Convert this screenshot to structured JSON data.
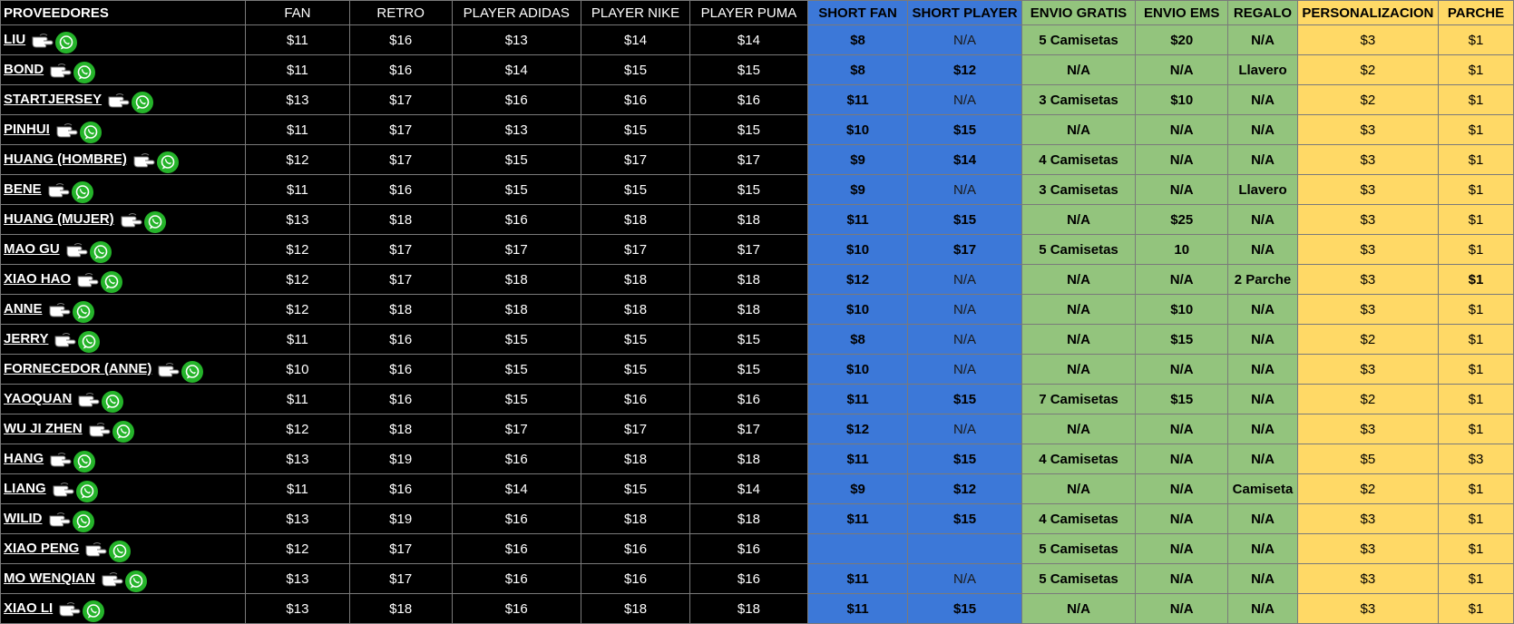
{
  "colors": {
    "black": "#000000",
    "blue": "#3c78d8",
    "green": "#93c47d",
    "yellow": "#ffd966",
    "whatsapp": "#25b42a"
  },
  "headers": {
    "proveedores": "PROVEEDORES",
    "fan": "FAN",
    "retro": "RETRO",
    "player_adidas": "PLAYER ADIDAS",
    "player_nike": "PLAYER NIKE",
    "player_puma": "PLAYER PUMA",
    "short_fan": "SHORT FAN",
    "short_player": "SHORT PLAYER",
    "envio_gratis": "ENVIO GRATIS",
    "envio_ems": "ENVIO EMS",
    "regalo": "REGALO",
    "personalizacion": "PERSONALIZACION",
    "parche": "PARCHE"
  },
  "row_icons": {
    "pointer": "pointing-hand-icon",
    "contact": "whatsapp-icon"
  },
  "rows": [
    {
      "name": "LIU",
      "fan": "$11",
      "retro": "$16",
      "adidas": "$13",
      "nike": "$14",
      "puma": "$14",
      "short_fan": "$8",
      "short_player": "N/A",
      "envio_gratis": "5 Camisetas",
      "envio_ems": "$20",
      "regalo": "N/A",
      "personalizacion": "$3",
      "parche": "$1"
    },
    {
      "name": "BOND",
      "fan": "$11",
      "retro": "$16",
      "adidas": "$14",
      "nike": "$15",
      "puma": "$15",
      "short_fan": "$8",
      "short_player": "$12",
      "envio_gratis": "N/A",
      "envio_ems": "N/A",
      "regalo": "Llavero",
      "personalizacion": "$2",
      "parche": "$1"
    },
    {
      "name": "STARTJERSEY",
      "fan": "$13",
      "retro": "$17",
      "adidas": "$16",
      "nike": "$16",
      "puma": "$16",
      "short_fan": "$11",
      "short_player": "N/A",
      "envio_gratis": "3 Camisetas",
      "envio_ems": "$10",
      "regalo": "N/A",
      "personalizacion": "$2",
      "parche": "$1"
    },
    {
      "name": "PINHUI",
      "fan": "$11",
      "retro": "$17",
      "adidas": "$13",
      "nike": "$15",
      "puma": "$15",
      "short_fan": "$10",
      "short_player": "$15",
      "envio_gratis": "N/A",
      "envio_ems": "N/A",
      "regalo": "N/A",
      "personalizacion": "$3",
      "parche": "$1"
    },
    {
      "name": "HUANG",
      "name_suffix": "(HOMBRE)",
      "fan": "$12",
      "retro": "$17",
      "adidas": "$15",
      "nike": "$17",
      "puma": "$17",
      "short_fan": "$9",
      "short_player": "$14",
      "envio_gratis": "4 Camisetas",
      "envio_ems": "N/A",
      "regalo": "N/A",
      "personalizacion": "$3",
      "parche": "$1"
    },
    {
      "name": "BENE",
      "fan": "$11",
      "retro": "$16",
      "adidas": "$15",
      "nike": "$15",
      "puma": "$15",
      "short_fan": "$9",
      "short_player": "N/A",
      "envio_gratis": "3 Camisetas",
      "envio_ems": "N/A",
      "regalo": "Llavero",
      "personalizacion": "$3",
      "parche": "$1"
    },
    {
      "name": "HUANG (MUJER)",
      "fan": "$13",
      "retro": "$18",
      "adidas": "$16",
      "nike": "$18",
      "puma": "$18",
      "short_fan": "$11",
      "short_player": "$15",
      "envio_gratis": "N/A",
      "envio_ems": "$25",
      "regalo": "N/A",
      "personalizacion": "$3",
      "parche": "$1"
    },
    {
      "name": "MAO GU",
      "fan": "$12",
      "retro": "$17",
      "adidas": "$17",
      "nike": "$17",
      "puma": "$17",
      "short_fan": "$10",
      "short_player": "$17",
      "envio_gratis": "5 Camisetas",
      "envio_ems": "10",
      "regalo": "N/A",
      "personalizacion": "$3",
      "parche": "$1"
    },
    {
      "name": "XIAO HAO",
      "fan": "$12",
      "retro": "$17",
      "adidas": "$18",
      "nike": "$18",
      "puma": "$18",
      "short_fan": "$12",
      "short_player": "N/A",
      "envio_gratis": "N/A",
      "envio_ems": "N/A",
      "regalo": "2 Parche",
      "personalizacion": "$3",
      "parche": "$1"
    },
    {
      "name": "ANNE",
      "fan": "$12",
      "retro": "$18",
      "adidas": "$18",
      "nike": "$18",
      "puma": "$18",
      "short_fan": "$10",
      "short_player": "N/A",
      "envio_gratis": "N/A",
      "envio_ems": "$10",
      "regalo": "N/A",
      "personalizacion": "$3",
      "parche": "$1"
    },
    {
      "name": "JERRY",
      "fan": "$11",
      "retro": "$16",
      "adidas": "$15",
      "nike": "$15",
      "puma": "$15",
      "short_fan": "$8",
      "short_player": "N/A",
      "envio_gratis": "N/A",
      "envio_ems": "$15",
      "regalo": "N/A",
      "personalizacion": "$2",
      "parche": "$1"
    },
    {
      "name": "FORNECEDOR (ANNE)",
      "fan": "$10",
      "retro": "$16",
      "adidas": "$15",
      "nike": "$15",
      "puma": "$15",
      "short_fan": "$10",
      "short_player": "N/A",
      "envio_gratis": "N/A",
      "envio_ems": "N/A",
      "regalo": "N/A",
      "personalizacion": "$3",
      "parche": "$1"
    },
    {
      "name": "YAOQUAN",
      "fan": "$11",
      "retro": "$16",
      "adidas": "$15",
      "nike": "$16",
      "puma": "$16",
      "short_fan": "$11",
      "short_player": "$15",
      "envio_gratis": "7 Camisetas",
      "envio_ems": "$15",
      "regalo": "N/A",
      "personalizacion": "$2",
      "parche": "$1"
    },
    {
      "name": "WU JI ZHEN",
      "fan": "$12",
      "retro": "$18",
      "adidas": "$17",
      "nike": "$17",
      "puma": "$17",
      "short_fan": "$12",
      "short_player": "N/A",
      "envio_gratis": "N/A",
      "envio_ems": "N/A",
      "regalo": "N/A",
      "personalizacion": "$3",
      "parche": "$1"
    },
    {
      "name": "HANG",
      "fan": "$13",
      "retro": "$19",
      "adidas": "$16",
      "nike": "$18",
      "puma": "$18",
      "short_fan": "$11",
      "short_player": "$15",
      "envio_gratis": "4 Camisetas",
      "envio_ems": "N/A",
      "regalo": "N/A",
      "personalizacion": "$5",
      "parche": "$3"
    },
    {
      "name": "LIANG",
      "fan": "$11",
      "retro": "$16",
      "adidas": "$14",
      "nike": "$15",
      "puma": "$14",
      "short_fan": "$9",
      "short_player": "$12",
      "envio_gratis": "N/A",
      "envio_ems": "N/A",
      "regalo": "Camiseta",
      "personalizacion": "$2",
      "parche": "$1"
    },
    {
      "name": "WILID",
      "fan": "$13",
      "retro": "$19",
      "adidas": "$16",
      "nike": "$18",
      "puma": "$18",
      "short_fan": "$11",
      "short_player": "$15",
      "envio_gratis": "4 Camisetas",
      "envio_ems": "N/A",
      "regalo": "N/A",
      "personalizacion": "$3",
      "parche": "$1"
    },
    {
      "name": "XIAO PENG",
      "fan": "$12",
      "retro": "$17",
      "adidas": "$16",
      "nike": "$16",
      "puma": "$16",
      "short_fan": "",
      "short_player": "",
      "envio_gratis": "5 Camisetas",
      "envio_ems": "N/A",
      "regalo": "N/A",
      "personalizacion": "$3",
      "parche": "$1"
    },
    {
      "name": "MO WENQIAN",
      "fan": "$13",
      "retro": "$17",
      "adidas": "$16",
      "nike": "$16",
      "puma": "$16",
      "short_fan": "$11",
      "short_player": "N/A",
      "envio_gratis": "5 Camisetas",
      "envio_ems": "N/A",
      "regalo": "N/A",
      "personalizacion": "$3",
      "parche": "$1"
    },
    {
      "name": "XIAO LI",
      "fan": "$13",
      "retro": "$18",
      "adidas": "$16",
      "nike": "$18",
      "puma": "$18",
      "short_fan": "$11",
      "short_player": "$15",
      "envio_gratis": "N/A",
      "envio_ems": "N/A",
      "regalo": "N/A",
      "personalizacion": "$3",
      "parche": "$1"
    }
  ]
}
